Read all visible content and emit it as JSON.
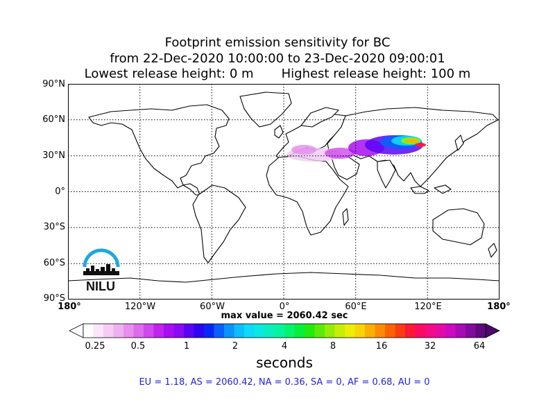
{
  "title": {
    "line1": "Footprint emission sensitivity for BC",
    "line2": "from 22-Dec-2020 10:00:00 to 23-Dec-2020 09:00:01",
    "line3_left": "Lowest release height: 0 m",
    "line3_right": "Highest release height: 100 m"
  },
  "map": {
    "projection": "cylindrical",
    "lat_labels": [
      "90°N",
      "60°N",
      "30°N",
      "0°",
      "30°S",
      "60°S",
      "90°S"
    ],
    "lon_labels": [
      "180°",
      "120°W",
      "60°W",
      "0°",
      "60°E",
      "120°E",
      "180°"
    ],
    "gridlines": "dotted",
    "logo_text": "NILU",
    "logo_color": "#1ea7e0"
  },
  "max_value": "max value = 2060.42 sec",
  "colorbar": {
    "tick_labels": [
      "0.25",
      "0.5",
      "1",
      "2",
      "4",
      "8",
      "16",
      "32",
      "64"
    ],
    "units": "seconds",
    "colors": [
      "#ffffff",
      "#fbe6fb",
      "#f6ccf6",
      "#efb0f0",
      "#e88fee",
      "#dd6ced",
      "#cf49ee",
      "#bf23f0",
      "#a80ef0",
      "#8a0af2",
      "#5a05f2",
      "#2d05f2",
      "#0a26f5",
      "#0a5ff8",
      "#0b93fb",
      "#0cbffc",
      "#0cdcf8",
      "#0ae8e0",
      "#08eec0",
      "#06f4a0",
      "#04f46e",
      "#06f03a",
      "#22ea10",
      "#5cea08",
      "#96ec06",
      "#c8ee06",
      "#ecee06",
      "#f8d406",
      "#f9b006",
      "#fa8a06",
      "#fb6206",
      "#fc3c10",
      "#fd1838",
      "#fc0a60",
      "#f20a86",
      "#e40aa6",
      "#cc0abe",
      "#a80ab4",
      "#820a9c",
      "#5e0a7e"
    ]
  },
  "stats": "EU = 1.18,  AS = 2060.42,  NA = 0.36,  SA = 0,  AF = 0.68,  AU = 0"
}
